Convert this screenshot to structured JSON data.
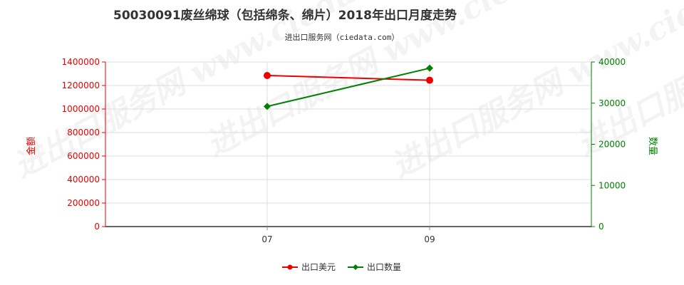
{
  "chart_data": {
    "type": "line",
    "title": "50030091废丝绵球（包括绵条、绵片）2018年出口月度走势",
    "subtitle": "进出口服务网（ciedata.com）",
    "categories": [
      "07",
      "09"
    ],
    "left_axis": {
      "label": "金额",
      "range": [
        0,
        1400000
      ],
      "ticks": [
        "0",
        "200000",
        "400000",
        "600000",
        "800000",
        "1000000",
        "1200000",
        "1400000"
      ],
      "color": "#ee0000"
    },
    "right_axis": {
      "label": "数量",
      "range": [
        0,
        40000
      ],
      "ticks": [
        "0",
        "10000",
        "20000",
        "30000",
        "40000"
      ],
      "color": "#008000"
    },
    "series": [
      {
        "name": "出口美元",
        "axis": "left",
        "color": "#ee0000",
        "marker": "circle",
        "values": [
          1285000,
          1245000
        ]
      },
      {
        "name": "出口数量",
        "axis": "right",
        "color": "#008000",
        "marker": "diamond",
        "values": [
          29200,
          38500
        ]
      }
    ],
    "grid": true,
    "legend_position": "bottom"
  }
}
